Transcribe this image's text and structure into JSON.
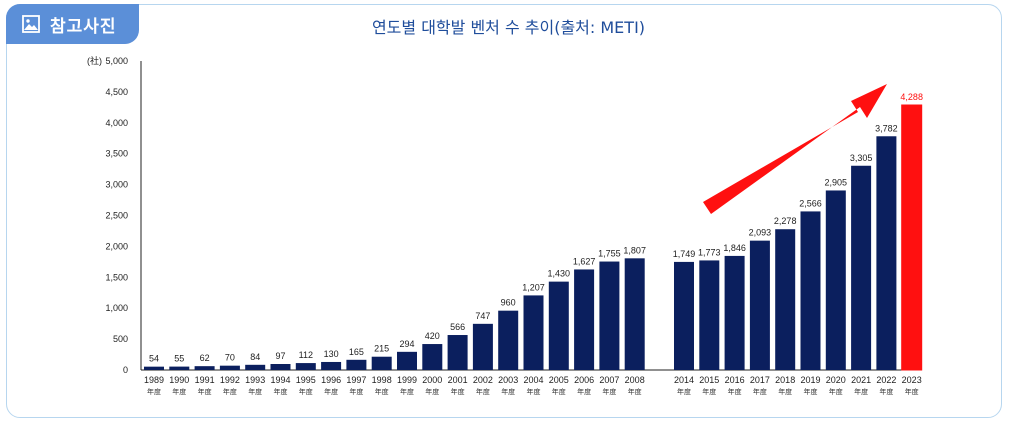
{
  "badge": {
    "label": "참고사진",
    "icon": "image-icon"
  },
  "chart_data": {
    "type": "bar",
    "title": "연도별 대학발 벤처 수 추이(출처: METI)",
    "unit_label": "(社)",
    "ylim": [
      0,
      5000
    ],
    "yticks": [
      "0",
      "500",
      "1,000",
      "1,500",
      "2,000",
      "2,500",
      "3,000",
      "3,500",
      "4,000",
      "4,500",
      "5,000"
    ],
    "year_suffix": "年度",
    "categories": [
      "1989",
      "1990",
      "1991",
      "1992",
      "1993",
      "1994",
      "1995",
      "1996",
      "1997",
      "1998",
      "1999",
      "2000",
      "2001",
      "2002",
      "2003",
      "2004",
      "2005",
      "2006",
      "2007",
      "2008",
      "2014",
      "2015",
      "2016",
      "2017",
      "2018",
      "2019",
      "2020",
      "2021",
      "2022",
      "2023"
    ],
    "values": [
      54,
      55,
      62,
      70,
      84,
      97,
      112,
      130,
      165,
      215,
      294,
      420,
      566,
      747,
      960,
      1207,
      1430,
      1627,
      1755,
      1807,
      1749,
      1773,
      1846,
      2093,
      2278,
      2566,
      2905,
      3305,
      3782,
      4288
    ],
    "value_labels": [
      "54",
      "55",
      "62",
      "70",
      "84",
      "97",
      "112",
      "130",
      "165",
      "215",
      "294",
      "420",
      "566",
      "747",
      "960",
      "1,207",
      "1,430",
      "1,627",
      "1,755",
      "1,807",
      "1,749",
      "1,773",
      "1,846",
      "2,093",
      "2,278",
      "2,566",
      "2,905",
      "3,305",
      "3,782",
      "4,288"
    ],
    "bar_color": "#0b1f5e",
    "highlight_color": "#ff1010",
    "highlight_index": 29,
    "arrow_color": "#ff1010",
    "grid": false
  }
}
